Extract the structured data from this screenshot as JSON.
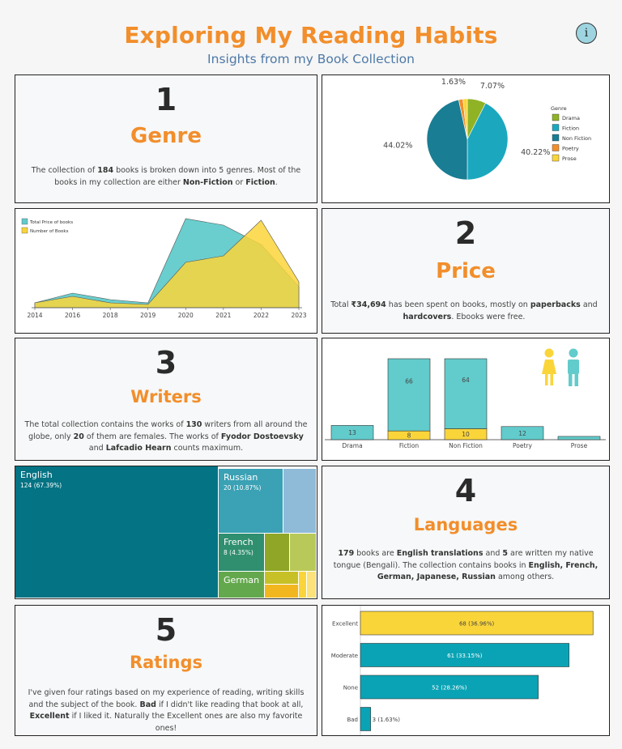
{
  "header": {
    "title": "Exploring My Reading Habits",
    "subtitle": "Insights from my Book Collection",
    "info_label": "i"
  },
  "genre": {
    "number": "1",
    "title": "Genre",
    "desc": [
      {
        "t": "The collection of "
      },
      {
        "t": "184",
        "b": true
      },
      {
        "t": " books is broken down into 5 genres. Most of the books in my collection are either "
      },
      {
        "t": "Non-Fiction",
        "b": true
      },
      {
        "t": " or "
      },
      {
        "t": "Fiction",
        "b": true
      },
      {
        "t": "."
      }
    ]
  },
  "price": {
    "number": "2",
    "title": "Price",
    "desc": [
      {
        "t": "Total "
      },
      {
        "t": "₹34,694",
        "b": true
      },
      {
        "t": " has been spent on books, mostly on "
      },
      {
        "t": "paperbacks",
        "b": true
      },
      {
        "t": " and "
      },
      {
        "t": "hardcovers",
        "b": true
      },
      {
        "t": ". Ebooks were free."
      }
    ]
  },
  "writers": {
    "number": "3",
    "title": "Writers",
    "desc": [
      {
        "t": "The total collection contains the works of "
      },
      {
        "t": "130",
        "b": true
      },
      {
        "t": " writers from all around the globe, only "
      },
      {
        "t": "20",
        "b": true
      },
      {
        "t": " of them are females. The works of "
      },
      {
        "t": "Fyodor Dostoevsky",
        "b": true
      },
      {
        "t": " and "
      },
      {
        "t": "Lafcadio Hearn",
        "b": true
      },
      {
        "t": " counts maximum."
      }
    ]
  },
  "languages": {
    "number": "4",
    "title": "Languages",
    "desc": [
      {
        "t": "179",
        "b": true
      },
      {
        "t": " books are "
      },
      {
        "t": "English translations",
        "b": true
      },
      {
        "t": " and "
      },
      {
        "t": "5",
        "b": true
      },
      {
        "t": " are written my native tongue (Bengali). The collection contains books in "
      },
      {
        "t": "English, French, German, Japanese, Russian",
        "b": true
      },
      {
        "t": " among others."
      }
    ]
  },
  "ratings": {
    "number": "5",
    "title": "Ratings",
    "desc": [
      {
        "t": "I've given four ratings based on my experience of reading, writing skills and the subject of the book. "
      },
      {
        "t": "Bad",
        "b": true
      },
      {
        "t": " if I didn't like reading that book at all, "
      },
      {
        "t": "Excellent",
        "b": true
      },
      {
        "t": " if I liked it. Naturally the Excellent ones are also my favorite ones!"
      }
    ]
  },
  "chart_data": [
    {
      "type": "pie",
      "id": "genre-pie",
      "legend_title": "Genre",
      "legend_position": "right",
      "slices": [
        {
          "label": "Drama",
          "value": 7.07,
          "label_text": "7.07%",
          "color": "#8fb325"
        },
        {
          "label": "Fiction",
          "value": 40.22,
          "label_text": "40.22%",
          "color": "#1ba8be"
        },
        {
          "label": "Non Fiction",
          "value": 44.02,
          "label_text": "44.02%",
          "color": "#197d93"
        },
        {
          "label": "Poetry",
          "value": 1.63,
          "label_text": "1.63%",
          "color": "#f28e2b"
        },
        {
          "label": "Prose",
          "value": 1.63,
          "label_text": "",
          "color": "#fad53a"
        }
      ]
    },
    {
      "type": "area",
      "id": "price-area",
      "legend_position": "top-left",
      "categories": [
        "2014",
        "2016",
        "2018",
        "2019",
        "2020",
        "2021",
        "2022",
        "2023"
      ],
      "series": [
        {
          "name": "Total Price of books",
          "color": "#62cbcb",
          "values": [
            3,
            9,
            5,
            3,
            55,
            51,
            39,
            13
          ]
        },
        {
          "name": "Number of Books",
          "color": "#fad53a",
          "values": [
            3,
            7,
            3,
            2,
            28,
            32,
            54,
            16
          ]
        }
      ],
      "ylim": [
        0,
        60
      ]
    },
    {
      "type": "bar",
      "id": "writers-gender-bar",
      "stacked": true,
      "categories": [
        "Drama",
        "Fiction",
        "Non Fiction",
        "Poetry",
        "Prose"
      ],
      "series": [
        {
          "name": "female",
          "color": "#fad53a",
          "values": [
            0,
            8,
            10,
            0,
            0
          ]
        },
        {
          "name": "male",
          "color": "#62cbcb",
          "values": [
            13,
            66,
            64,
            12,
            3
          ]
        }
      ],
      "value_labels": [
        [
          "13"
        ],
        [
          "8",
          "66"
        ],
        [
          "10",
          "64"
        ],
        [
          "12"
        ],
        [
          ""
        ]
      ]
    },
    {
      "type": "heatmap",
      "id": "languages-treemap",
      "items": [
        {
          "label": "English",
          "value": 124,
          "value_text": "124 (67.39%)",
          "color": "#047384"
        },
        {
          "label": "Russian",
          "value": 20,
          "value_text": "20 (10.87%)",
          "color": "#3ba1b4"
        },
        {
          "label": "French",
          "value": 8,
          "value_text": "8 (4.35%)",
          "color": "#2f8f6f"
        },
        {
          "label": "German",
          "value": 7,
          "value_text": "",
          "color": "#64a84d"
        }
      ]
    },
    {
      "type": "bar",
      "id": "ratings-bar",
      "orientation": "horizontal",
      "categories": [
        "Excellent",
        "Moderate",
        "None",
        "Bad"
      ],
      "values": [
        68,
        61,
        52,
        3
      ],
      "value_labels": [
        "68 (36.96%)",
        "61 (33.15%)",
        "52 (28.26%)",
        "3 (1.63%)"
      ],
      "colors": [
        "#fad53a",
        "#0aa3b5",
        "#0aa3b5",
        "#0aa3b5"
      ],
      "xlim": [
        0,
        70
      ]
    }
  ],
  "icons": {
    "female": "woman-icon",
    "male": "man-icon",
    "female_color": "#fad53a",
    "male_color": "#62cbcb"
  }
}
